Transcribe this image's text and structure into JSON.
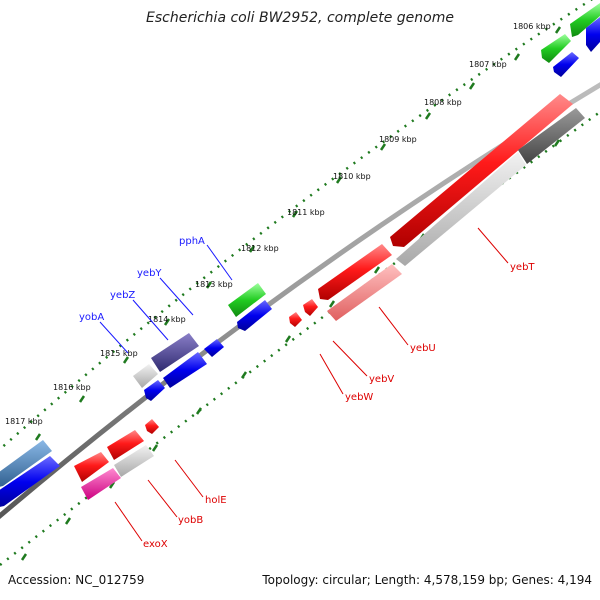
{
  "title": "Escherichia coli BW2952, complete genome",
  "footer": {
    "accession": "Accession: NC_012759",
    "summary": "Topology: circular; Length: 4,578,159 bp; Genes: 4,194"
  },
  "colors": {
    "backbone": "#777777",
    "ticks": "#1f7a1f",
    "label_blue": "#1a1aff",
    "label_red": "#dd0000"
  },
  "kbp_labels": [
    "1806 kbp",
    "1807 kbp",
    "1808 kbp",
    "1809 kbp",
    "1810 kbp",
    "1811 kbp",
    "1812 kbp",
    "1813 kbp",
    "1814 kbp",
    "1815 kbp",
    "1816 kbp",
    "1817 kbp"
  ],
  "genes_top": [
    {
      "name": "pphA"
    },
    {
      "name": "yebY"
    },
    {
      "name": "yebZ"
    },
    {
      "name": "yobA"
    }
  ],
  "genes_bottom": [
    {
      "name": "yebT"
    },
    {
      "name": "yebU"
    },
    {
      "name": "yebV"
    },
    {
      "name": "yebW"
    },
    {
      "name": "holE"
    },
    {
      "name": "yobB"
    },
    {
      "name": "exoX"
    }
  ]
}
